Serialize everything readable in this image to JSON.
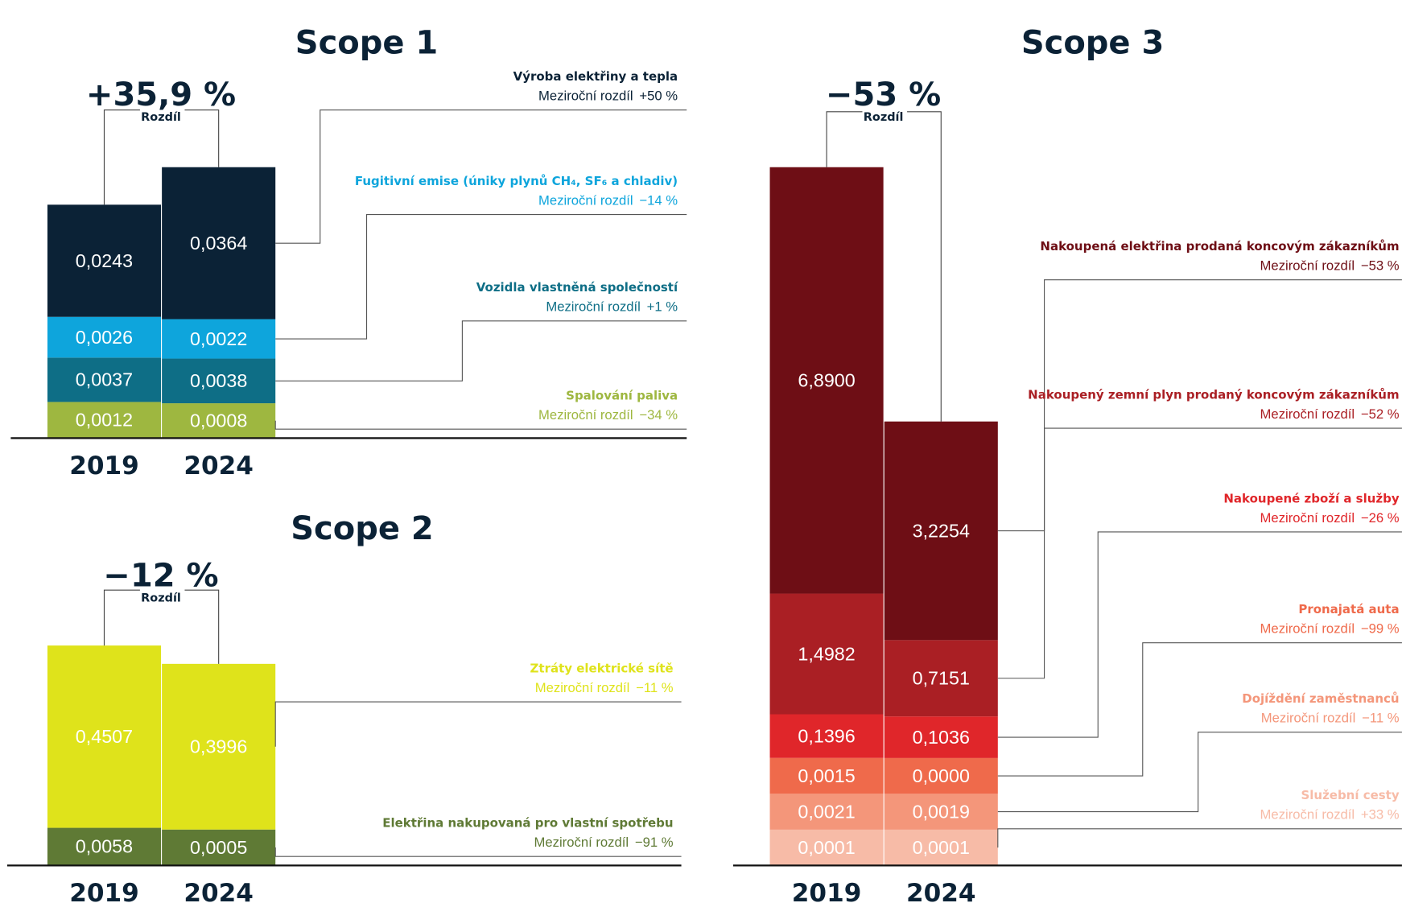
{
  "chart_data": [
    {
      "type": "stacked-bar",
      "title": "Scope 1",
      "change": "+35,9 %",
      "change_label": "Rozdíl",
      "yoy_label": "Meziroční rozdíl",
      "categories": [
        "2019",
        "2024"
      ],
      "series": [
        {
          "name": "Výroba elektřiny a tepla",
          "color": "#0b2236",
          "values": [
            0.0243,
            0.0364
          ],
          "value_labels": [
            "0,0243",
            "0,0364"
          ],
          "change": "+50 %"
        },
        {
          "name": "Fugitivní emise (úniky plynů CH₄, SF₆ a chladiv)",
          "color": "#0ea5dc",
          "values": [
            0.0026,
            0.0022
          ],
          "value_labels": [
            "0,0026",
            "0,0022"
          ],
          "change": "−14 %"
        },
        {
          "name": "Vozidla vlastněná společností",
          "color": "#0e6e86",
          "values": [
            0.0037,
            0.0038
          ],
          "value_labels": [
            "0,0037",
            "0,0038"
          ],
          "change": "+1 %"
        },
        {
          "name": "Spalování paliva",
          "color": "#9eb740",
          "values": [
            0.0012,
            0.0008
          ],
          "value_labels": [
            "0,0012",
            "0,0008"
          ],
          "change": "−34 %"
        }
      ]
    },
    {
      "type": "stacked-bar",
      "title": "Scope 2",
      "change": "−12 %",
      "change_label": "Rozdíl",
      "yoy_label": "Meziroční rozdíl",
      "categories": [
        "2019",
        "2024"
      ],
      "series": [
        {
          "name": "Ztráty elektrické sítě",
          "color": "#dfe31b",
          "values": [
            0.4507,
            0.3996
          ],
          "value_labels": [
            "0,4507",
            "0,3996"
          ],
          "change": "−11 %"
        },
        {
          "name": "Elektřina nakupovaná pro vlastní spotřebu",
          "color": "#5f7a35",
          "values": [
            0.0058,
            0.0005
          ],
          "value_labels": [
            "0,0058",
            "0,0005"
          ],
          "change": "−91 %"
        }
      ]
    },
    {
      "type": "stacked-bar",
      "title": "Scope 3",
      "change": "−53 %",
      "change_label": "Rozdíl",
      "yoy_label": "Meziroční rozdíl",
      "categories": [
        "2019",
        "2024"
      ],
      "series": [
        {
          "name": "Nakoupená elektřina prodaná koncovým zákazníkům",
          "color": "#6e0e15",
          "values": [
            6.89,
            3.2254
          ],
          "value_labels": [
            "6,8900",
            "3,2254"
          ],
          "change": "−53 %"
        },
        {
          "name": "Nakoupený zemní plyn prodaný koncovým zákazníkům",
          "color": "#aa1f24",
          "values": [
            1.4982,
            0.7151
          ],
          "value_labels": [
            "1,4982",
            "0,7151"
          ],
          "change": "−52 %"
        },
        {
          "name": "Nakoupené zboží a služby",
          "color": "#e0262a",
          "values": [
            0.1396,
            0.1036
          ],
          "value_labels": [
            "0,1396",
            "0,1036"
          ],
          "change": "−26 %"
        },
        {
          "name": "Pronajatá auta",
          "color": "#ef6a4b",
          "values": [
            0.0015,
            0.0
          ],
          "value_labels": [
            "0,0015",
            "0,0000"
          ],
          "change": "−99 %"
        },
        {
          "name": "Dojíždění zaměstnanců",
          "color": "#f4967a",
          "values": [
            0.0021,
            0.0019
          ],
          "value_labels": [
            "0,0021",
            "0,0019"
          ],
          "change": "−11 %"
        },
        {
          "name": "Služební cesty",
          "color": "#f7bba7",
          "values": [
            0.0001,
            0.0001
          ],
          "value_labels": [
            "0,0001",
            "0,0001"
          ],
          "change": "+33 %"
        }
      ]
    }
  ]
}
